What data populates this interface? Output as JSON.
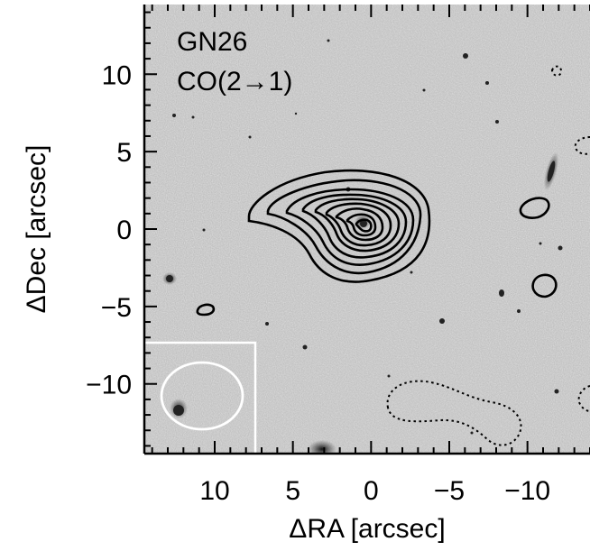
{
  "annotations": {
    "source_name": "GN26",
    "line_name": "CO(2→1)"
  },
  "axes": {
    "x_label": "ΔRA [arcsec]",
    "y_label": "ΔDec [arcsec]",
    "x_ticks": [
      {
        "value": 10,
        "label": "10"
      },
      {
        "value": 5,
        "label": "5"
      },
      {
        "value": 0,
        "label": "0"
      },
      {
        "value": -5,
        "label": "−5"
      },
      {
        "value": -10,
        "label": "−10"
      }
    ],
    "y_ticks": [
      {
        "value": 10,
        "label": "10"
      },
      {
        "value": 5,
        "label": "5"
      },
      {
        "value": 0,
        "label": "0"
      },
      {
        "value": -5,
        "label": "−5"
      },
      {
        "value": -10,
        "label": "−10"
      }
    ],
    "x_range_data": [
      14.5,
      -14.0
    ],
    "y_range_data": [
      -14.5,
      14.5
    ]
  },
  "colors": {
    "background_image": "#b8b8b8",
    "contour_positive": "#000000",
    "contour_negative": "#000000",
    "beam_inset": "#ffffff"
  }
}
